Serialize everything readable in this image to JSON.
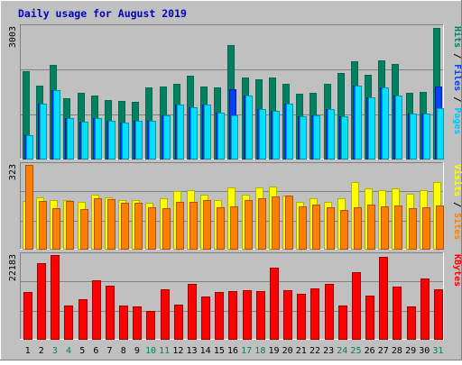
{
  "chart_data": {
    "type": "bar",
    "title": "Daily usage for August 2019",
    "categories": [
      "1",
      "2",
      "3",
      "4",
      "5",
      "6",
      "7",
      "8",
      "9",
      "10",
      "11",
      "12",
      "13",
      "14",
      "15",
      "16",
      "17",
      "18",
      "19",
      "20",
      "21",
      "22",
      "23",
      "24",
      "25",
      "26",
      "27",
      "28",
      "29",
      "30",
      "31"
    ],
    "weekend_days": [
      "3",
      "4",
      "10",
      "11",
      "17",
      "18",
      "24",
      "25",
      "31"
    ],
    "panels": [
      {
        "id": "hits",
        "ymax_label": "3003",
        "ymax": 3003,
        "ylabels": [
          "Hits",
          "Files",
          "Pages"
        ],
        "series": [
          {
            "name": "Hits",
            "values": [
              1985,
              1675,
              2130,
              1370,
              1495,
              1440,
              1340,
              1325,
              1305,
              1615,
              1655,
              1710,
              1890,
              1655,
              1630,
              2600,
              1850,
              1810,
              1855,
              1715,
              1475,
              1500,
              1705,
              1950,
              2220,
              1915,
              2245,
              2150,
              1495,
              1525,
              2980
            ]
          },
          {
            "name": "Files",
            "values": [
              545,
              1245,
              1555,
              935,
              850,
              935,
              865,
              825,
              865,
              860,
              990,
              1235,
              1170,
              1225,
              1040,
              1580,
              1430,
              1140,
              1090,
              1260,
              965,
              990,
              1135,
              960,
              1665,
              1390,
              1630,
              1440,
              1035,
              1030,
              1645
            ]
          },
          {
            "name": "Pages",
            "values": [
              545,
              1245,
              1555,
              935,
              850,
              935,
              865,
              825,
              865,
              860,
              990,
              1235,
              1170,
              1225,
              1040,
              985,
              1430,
              1140,
              1090,
              1260,
              965,
              990,
              1135,
              960,
              1665,
              1390,
              1630,
              1440,
              1035,
              1030,
              1155
            ]
          }
        ]
      },
      {
        "id": "visits",
        "ymax_label": "323",
        "ymax": 323,
        "ylabels": [
          "Visits",
          "Sites"
        ],
        "series": [
          {
            "name": "Visits",
            "values": [
              185,
              197,
              189,
              188,
              179,
              210,
              198,
              189,
              187,
              178,
              194,
              223,
              227,
              210,
              186,
              236,
              210,
              237,
              239,
              206,
              179,
              195,
              181,
              193,
              257,
              231,
              225,
              233,
              213,
              225,
              258
            ]
          },
          {
            "name": "Sites",
            "values": [
              323,
              185,
              158,
              185,
              154,
              194,
              192,
              178,
              176,
              159,
              158,
              180,
              181,
              189,
              161,
              162,
              186,
              194,
              201,
              206,
              163,
              169,
              160,
              148,
              159,
              169,
              163,
              165,
              158,
              160,
              168
            ]
          }
        ]
      },
      {
        "id": "kbytes",
        "ymax_label": "22183",
        "ymax": 22183,
        "ylabels": [
          "KBytes"
        ],
        "series": [
          {
            "name": "KBytes",
            "values": [
              12390,
              19950,
              22183,
              8780,
              10420,
              15540,
              14130,
              8890,
              8560,
              7450,
              13210,
              9050,
              14450,
              11190,
              12440,
              12630,
              12810,
              12580,
              18860,
              12960,
              11850,
              13340,
              14450,
              8940,
              17720,
              11480,
              21720,
              13880,
              8670,
              16070,
              13060
            ]
          }
        ]
      }
    ]
  }
}
